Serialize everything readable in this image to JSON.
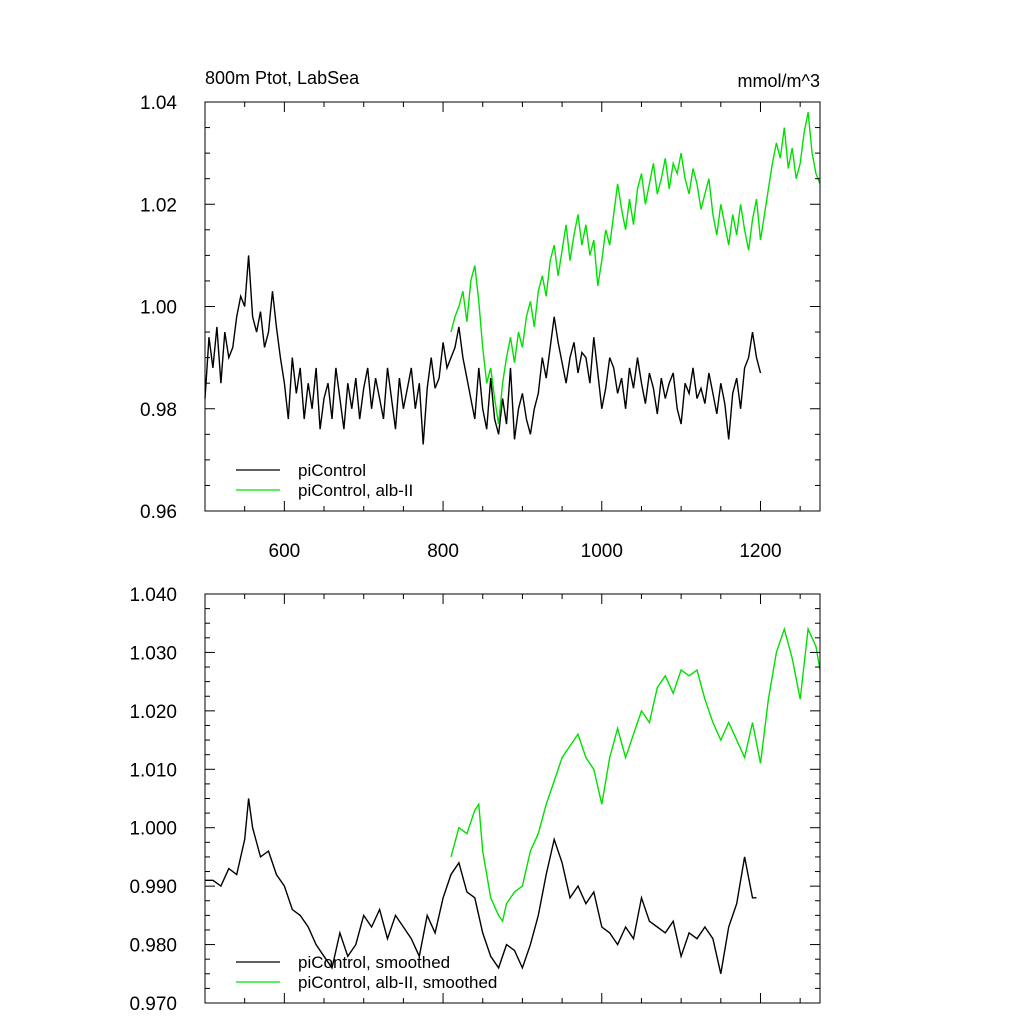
{
  "chart_data": [
    {
      "type": "line",
      "title_left": "800m Ptot, LabSea",
      "title_right": "mmol/m^3",
      "xlabel": "",
      "ylabel": "",
      "xlim": [
        500,
        1275
      ],
      "ylim": [
        0.96,
        1.04
      ],
      "x_ticks": [
        600,
        800,
        1000,
        1200
      ],
      "x_tick_labels": [
        "600",
        "800",
        "1000",
        "1200"
      ],
      "y_ticks": [
        0.96,
        0.98,
        1.0,
        1.02,
        1.04
      ],
      "y_tick_labels": [
        "0.96",
        "0.98",
        "1.00",
        "1.02",
        "1.04"
      ],
      "grid": false,
      "legend_position": "bottom-left",
      "series": [
        {
          "name": "piControl",
          "color": "#000000",
          "x": [
            500,
            505,
            510,
            515,
            520,
            525,
            530,
            535,
            540,
            545,
            550,
            555,
            560,
            565,
            570,
            575,
            580,
            585,
            590,
            595,
            600,
            605,
            610,
            615,
            620,
            625,
            630,
            635,
            640,
            645,
            650,
            655,
            660,
            665,
            670,
            675,
            680,
            685,
            690,
            695,
            700,
            705,
            710,
            715,
            720,
            725,
            730,
            735,
            740,
            745,
            750,
            755,
            760,
            765,
            770,
            775,
            780,
            785,
            790,
            795,
            800,
            805,
            810,
            815,
            820,
            825,
            830,
            835,
            840,
            845,
            850,
            855,
            860,
            865,
            870,
            875,
            880,
            885,
            890,
            895,
            900,
            905,
            910,
            915,
            920,
            925,
            930,
            935,
            940,
            945,
            950,
            955,
            960,
            965,
            970,
            975,
            980,
            985,
            990,
            995,
            1000,
            1005,
            1010,
            1015,
            1020,
            1025,
            1030,
            1035,
            1040,
            1045,
            1050,
            1055,
            1060,
            1065,
            1070,
            1075,
            1080,
            1085,
            1090,
            1095,
            1100,
            1105,
            1110,
            1115,
            1120,
            1125,
            1130,
            1135,
            1140,
            1145,
            1150,
            1155,
            1160,
            1165,
            1170,
            1175,
            1180,
            1185,
            1190,
            1195,
            1200
          ],
          "y": [
            0.982,
            0.994,
            0.988,
            0.996,
            0.985,
            0.995,
            0.99,
            0.992,
            0.998,
            1.002,
            1.0,
            1.01,
            0.998,
            0.995,
            0.999,
            0.992,
            0.995,
            1.003,
            0.996,
            0.99,
            0.985,
            0.978,
            0.99,
            0.983,
            0.988,
            0.978,
            0.985,
            0.98,
            0.988,
            0.976,
            0.982,
            0.985,
            0.978,
            0.988,
            0.982,
            0.976,
            0.985,
            0.98,
            0.986,
            0.978,
            0.984,
            0.988,
            0.98,
            0.986,
            0.982,
            0.978,
            0.988,
            0.982,
            0.976,
            0.986,
            0.98,
            0.984,
            0.988,
            0.98,
            0.985,
            0.973,
            0.984,
            0.99,
            0.984,
            0.986,
            0.993,
            0.988,
            0.99,
            0.992,
            0.996,
            0.99,
            0.986,
            0.982,
            0.978,
            0.988,
            0.98,
            0.976,
            0.986,
            0.978,
            0.975,
            0.982,
            0.977,
            0.988,
            0.974,
            0.98,
            0.983,
            0.978,
            0.975,
            0.98,
            0.983,
            0.99,
            0.986,
            0.992,
            0.998,
            0.993,
            0.989,
            0.985,
            0.99,
            0.993,
            0.987,
            0.991,
            0.99,
            0.985,
            0.994,
            0.987,
            0.98,
            0.984,
            0.99,
            0.988,
            0.983,
            0.986,
            0.98,
            0.988,
            0.984,
            0.99,
            0.985,
            0.981,
            0.987,
            0.984,
            0.979,
            0.986,
            0.982,
            0.985,
            0.987,
            0.98,
            0.977,
            0.985,
            0.983,
            0.988,
            0.982,
            0.984,
            0.981,
            0.987,
            0.983,
            0.979,
            0.985,
            0.981,
            0.974,
            0.983,
            0.986,
            0.98,
            0.988,
            0.99,
            0.995,
            0.99,
            0.987
          ]
        },
        {
          "name": "piControl, alb-II",
          "color": "#00e000",
          "x": [
            810,
            815,
            820,
            825,
            830,
            835,
            840,
            845,
            850,
            855,
            860,
            865,
            870,
            875,
            880,
            885,
            890,
            895,
            900,
            905,
            910,
            915,
            920,
            925,
            930,
            935,
            940,
            945,
            950,
            955,
            960,
            965,
            970,
            975,
            980,
            985,
            990,
            995,
            1000,
            1005,
            1010,
            1015,
            1020,
            1025,
            1030,
            1035,
            1040,
            1045,
            1050,
            1055,
            1060,
            1065,
            1070,
            1075,
            1080,
            1085,
            1090,
            1095,
            1100,
            1105,
            1110,
            1115,
            1120,
            1125,
            1130,
            1135,
            1140,
            1145,
            1150,
            1155,
            1160,
            1165,
            1170,
            1175,
            1180,
            1185,
            1190,
            1195,
            1200,
            1205,
            1210,
            1215,
            1220,
            1225,
            1230,
            1235,
            1240,
            1245,
            1250,
            1255,
            1260,
            1265,
            1270,
            1275
          ],
          "y": [
            0.995,
            0.998,
            1.0,
            1.003,
            0.997,
            1.005,
            1.008,
            1.001,
            0.992,
            0.985,
            0.988,
            0.982,
            0.977,
            0.985,
            0.99,
            0.994,
            0.989,
            0.995,
            0.992,
            0.998,
            1.001,
            0.996,
            1.003,
            1.006,
            1.002,
            1.009,
            1.012,
            1.006,
            1.011,
            1.016,
            1.009,
            1.014,
            1.018,
            1.012,
            1.016,
            1.01,
            1.013,
            1.004,
            1.009,
            1.015,
            1.012,
            1.018,
            1.024,
            1.019,
            1.015,
            1.021,
            1.016,
            1.023,
            1.026,
            1.02,
            1.024,
            1.028,
            1.022,
            1.025,
            1.029,
            1.023,
            1.028,
            1.026,
            1.03,
            1.025,
            1.022,
            1.027,
            1.024,
            1.019,
            1.022,
            1.025,
            1.018,
            1.014,
            1.02,
            1.016,
            1.012,
            1.018,
            1.014,
            1.02,
            1.015,
            1.011,
            1.017,
            1.021,
            1.013,
            1.018,
            1.023,
            1.028,
            1.032,
            1.029,
            1.035,
            1.027,
            1.031,
            1.025,
            1.028,
            1.034,
            1.038,
            1.03,
            1.026,
            1.024
          ]
        }
      ]
    },
    {
      "type": "line",
      "title_left": "",
      "title_right": "",
      "xlabel": "",
      "ylabel": "",
      "xlim": [
        500,
        1275
      ],
      "ylim": [
        0.97,
        1.04
      ],
      "x_ticks": [
        600,
        800,
        1000,
        1200
      ],
      "y_ticks": [
        0.97,
        0.98,
        0.99,
        1.0,
        1.01,
        1.02,
        1.03,
        1.04
      ],
      "y_tick_labels": [
        "0.970",
        "0.980",
        "0.990",
        "1.000",
        "1.010",
        "1.020",
        "1.030",
        "1.040"
      ],
      "grid": false,
      "legend_position": "bottom-left",
      "series": [
        {
          "name": "piControl, smoothed",
          "color": "#000000",
          "x": [
            500,
            510,
            520,
            530,
            540,
            550,
            555,
            560,
            570,
            580,
            590,
            600,
            610,
            620,
            630,
            640,
            650,
            660,
            670,
            680,
            690,
            700,
            710,
            720,
            730,
            740,
            750,
            760,
            770,
            780,
            790,
            800,
            810,
            820,
            830,
            840,
            850,
            860,
            870,
            880,
            890,
            900,
            910,
            920,
            930,
            940,
            950,
            960,
            970,
            980,
            990,
            1000,
            1010,
            1020,
            1030,
            1040,
            1050,
            1060,
            1070,
            1080,
            1090,
            1100,
            1110,
            1120,
            1130,
            1140,
            1150,
            1160,
            1170,
            1180,
            1190,
            1195
          ],
          "y": [
            0.991,
            0.991,
            0.99,
            0.993,
            0.992,
            0.998,
            1.005,
            1.0,
            0.995,
            0.996,
            0.992,
            0.99,
            0.986,
            0.985,
            0.983,
            0.98,
            0.978,
            0.976,
            0.982,
            0.978,
            0.98,
            0.985,
            0.983,
            0.986,
            0.981,
            0.985,
            0.983,
            0.981,
            0.978,
            0.985,
            0.982,
            0.988,
            0.992,
            0.994,
            0.989,
            0.988,
            0.982,
            0.978,
            0.976,
            0.98,
            0.979,
            0.976,
            0.98,
            0.985,
            0.992,
            0.998,
            0.994,
            0.988,
            0.99,
            0.987,
            0.989,
            0.983,
            0.982,
            0.98,
            0.983,
            0.981,
            0.988,
            0.984,
            0.983,
            0.982,
            0.984,
            0.978,
            0.982,
            0.981,
            0.983,
            0.981,
            0.975,
            0.983,
            0.987,
            0.995,
            0.988,
            0.988
          ]
        },
        {
          "name": "piControl, alb-II, smoothed",
          "color": "#00e000",
          "x": [
            810,
            820,
            830,
            840,
            845,
            850,
            860,
            870,
            875,
            880,
            890,
            900,
            910,
            920,
            930,
            940,
            950,
            960,
            970,
            980,
            990,
            1000,
            1010,
            1020,
            1030,
            1040,
            1050,
            1060,
            1070,
            1080,
            1090,
            1100,
            1110,
            1120,
            1130,
            1140,
            1150,
            1160,
            1170,
            1180,
            1190,
            1200,
            1210,
            1220,
            1230,
            1240,
            1250,
            1260,
            1270,
            1275
          ],
          "y": [
            0.995,
            1.0,
            0.999,
            1.003,
            1.004,
            0.996,
            0.988,
            0.985,
            0.984,
            0.987,
            0.989,
            0.99,
            0.996,
            0.999,
            1.004,
            1.008,
            1.012,
            1.014,
            1.016,
            1.012,
            1.01,
            1.004,
            1.012,
            1.017,
            1.012,
            1.016,
            1.02,
            1.018,
            1.024,
            1.026,
            1.023,
            1.027,
            1.026,
            1.027,
            1.022,
            1.018,
            1.015,
            1.018,
            1.015,
            1.012,
            1.018,
            1.011,
            1.022,
            1.03,
            1.034,
            1.029,
            1.022,
            1.034,
            1.031,
            1.027
          ]
        }
      ]
    }
  ]
}
